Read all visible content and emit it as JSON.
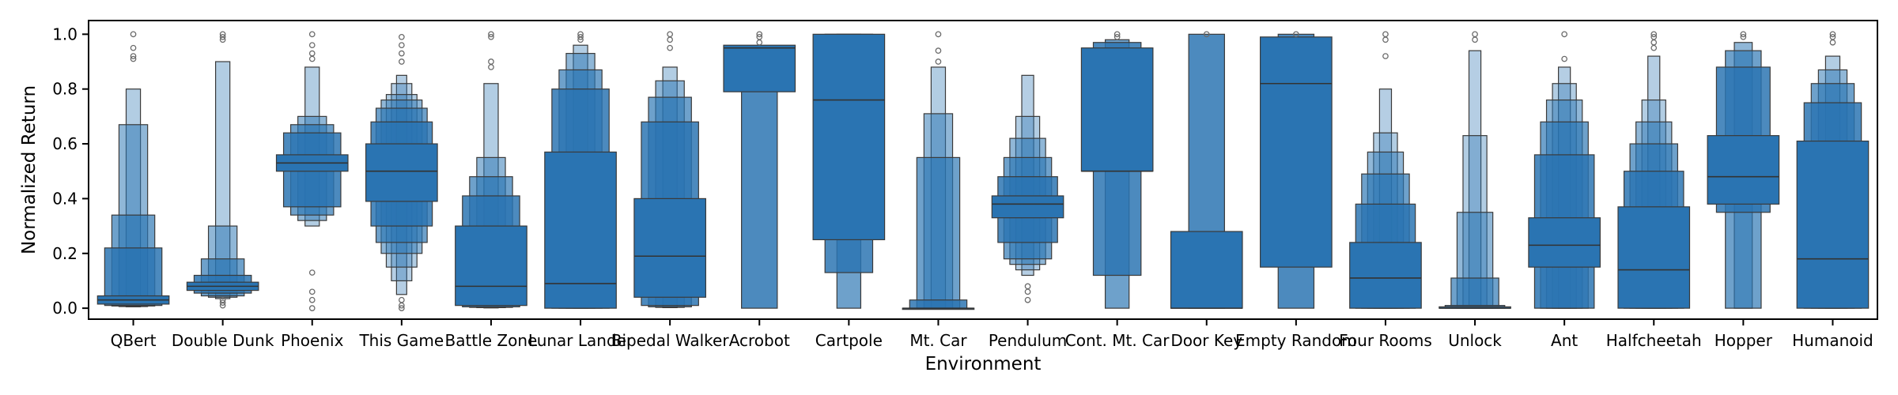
{
  "chart_data": {
    "type": "boxen",
    "title": "",
    "xlabel": "Environment",
    "ylabel": "Normalized Return",
    "ylim": [
      -0.04,
      1.05
    ],
    "yticks": [
      0.0,
      0.2,
      0.4,
      0.6,
      0.8,
      1.0
    ],
    "ytick_labels": [
      "0.0",
      "0.2",
      "0.4",
      "0.6",
      "0.8",
      "1.0"
    ],
    "grid": false,
    "legend": "none",
    "colors": {
      "box": "#2a74b2",
      "edge": "#3a3a3a",
      "outlier": "#6a6a6a"
    },
    "categories": [
      "QBert",
      "Double Dunk",
      "Phoenix",
      "This Game",
      "Battle Zone",
      "Lunar Lander",
      "Bipedal Walker",
      "Acrobot",
      "Cartpole",
      "Mt. Car",
      "Pendulum",
      "Cont. Mt. Car",
      "Door Key",
      "Empty Random",
      "Four Rooms",
      "Unlock",
      "Ant",
      "Halfcheetah",
      "Hopper",
      "Humanoid"
    ],
    "boxes": [
      {
        "median": 0.03,
        "levels": [
          [
            0.015,
            0.045
          ],
          [
            0.01,
            0.22
          ],
          [
            0.008,
            0.34
          ],
          [
            0.006,
            0.67
          ],
          [
            0.005,
            0.8
          ]
        ],
        "outliers": [
          0.92,
          0.91,
          0.95,
          1.0
        ]
      },
      {
        "median": 0.08,
        "levels": [
          [
            0.065,
            0.095
          ],
          [
            0.055,
            0.12
          ],
          [
            0.045,
            0.18
          ],
          [
            0.04,
            0.3
          ],
          [
            0.035,
            0.9
          ]
        ],
        "outliers": [
          0.01,
          0.02,
          0.03,
          0.98,
          0.99,
          1.0
        ]
      },
      {
        "median": 0.53,
        "levels": [
          [
            0.5,
            0.56
          ],
          [
            0.37,
            0.64
          ],
          [
            0.34,
            0.67
          ],
          [
            0.32,
            0.7
          ],
          [
            0.3,
            0.88
          ]
        ],
        "outliers": [
          0.0,
          0.03,
          0.06,
          0.13,
          0.91,
          0.93,
          0.96,
          1.0
        ]
      },
      {
        "median": 0.5,
        "levels": [
          [
            0.39,
            0.6
          ],
          [
            0.3,
            0.68
          ],
          [
            0.24,
            0.73
          ],
          [
            0.2,
            0.76
          ],
          [
            0.15,
            0.78
          ],
          [
            0.1,
            0.82
          ],
          [
            0.05,
            0.85
          ]
        ],
        "outliers": [
          0.0,
          0.01,
          0.03,
          0.9,
          0.93,
          0.96,
          0.99
        ]
      },
      {
        "median": 0.08,
        "levels": [
          [
            0.01,
            0.3
          ],
          [
            0.005,
            0.41
          ],
          [
            0.003,
            0.48
          ],
          [
            0.002,
            0.55
          ],
          [
            0.001,
            0.82
          ]
        ],
        "outliers": [
          0.88,
          0.9,
          0.99,
          1.0
        ]
      },
      {
        "median": 0.09,
        "levels": [
          [
            0.0,
            0.57
          ],
          [
            0.0,
            0.8
          ],
          [
            0.0,
            0.87
          ],
          [
            0.0,
            0.93
          ],
          [
            0.0,
            0.96
          ]
        ],
        "outliers": [
          0.98,
          0.99,
          1.0
        ]
      },
      {
        "median": 0.19,
        "levels": [
          [
            0.04,
            0.4
          ],
          [
            0.01,
            0.68
          ],
          [
            0.005,
            0.77
          ],
          [
            0.003,
            0.83
          ],
          [
            0.002,
            0.88
          ]
        ],
        "outliers": [
          0.95,
          0.98,
          1.0
        ]
      },
      {
        "median": 0.95,
        "levels": [
          [
            0.79,
            0.96
          ],
          [
            0.0,
            0.95
          ]
        ],
        "outliers": [
          0.97,
          0.99,
          1.0
        ]
      },
      {
        "median": 0.76,
        "levels": [
          [
            0.25,
            1.0
          ],
          [
            0.13,
            1.0
          ],
          [
            0.0,
            1.0
          ]
        ],
        "outliers": []
      },
      {
        "median": 0.0,
        "levels": [
          [
            0.0,
            0.0
          ],
          [
            0.0,
            0.03
          ],
          [
            0.0,
            0.55
          ],
          [
            0.0,
            0.71
          ],
          [
            0.0,
            0.88
          ]
        ],
        "outliers": [
          0.9,
          0.94,
          1.0
        ]
      },
      {
        "median": 0.38,
        "levels": [
          [
            0.33,
            0.41
          ],
          [
            0.24,
            0.48
          ],
          [
            0.18,
            0.55
          ],
          [
            0.16,
            0.62
          ],
          [
            0.14,
            0.7
          ],
          [
            0.12,
            0.85
          ]
        ],
        "outliers": [
          0.03,
          0.06,
          0.08
        ]
      },
      {
        "median": 0.5,
        "levels": [
          [
            0.5,
            0.95
          ],
          [
            0.12,
            0.97
          ],
          [
            0.0,
            0.98
          ]
        ],
        "outliers": [
          0.99,
          1.0
        ]
      },
      {
        "median": 0.0,
        "levels": [
          [
            0.0,
            0.28
          ],
          [
            0.0,
            1.0
          ]
        ],
        "outliers": [
          1.0
        ]
      },
      {
        "median": 0.82,
        "levels": [
          [
            0.15,
            0.99
          ],
          [
            0.0,
            1.0
          ]
        ],
        "outliers": [
          1.0
        ]
      },
      {
        "median": 0.11,
        "levels": [
          [
            0.0,
            0.24
          ],
          [
            0.0,
            0.38
          ],
          [
            0.0,
            0.49
          ],
          [
            0.0,
            0.57
          ],
          [
            0.0,
            0.64
          ],
          [
            0.0,
            0.8
          ]
        ],
        "outliers": [
          0.92,
          0.98,
          1.0
        ]
      },
      {
        "median": 0.0,
        "levels": [
          [
            0.0,
            0.005
          ],
          [
            0.0,
            0.01
          ],
          [
            0.0,
            0.11
          ],
          [
            0.0,
            0.35
          ],
          [
            0.0,
            0.63
          ],
          [
            0.0,
            0.94
          ]
        ],
        "outliers": [
          0.98,
          1.0
        ]
      },
      {
        "median": 0.23,
        "levels": [
          [
            0.15,
            0.33
          ],
          [
            0.0,
            0.56
          ],
          [
            0.0,
            0.68
          ],
          [
            0.0,
            0.76
          ],
          [
            0.0,
            0.82
          ],
          [
            0.0,
            0.88
          ]
        ],
        "outliers": [
          0.91,
          1.0
        ]
      },
      {
        "median": 0.14,
        "levels": [
          [
            0.0,
            0.37
          ],
          [
            0.0,
            0.5
          ],
          [
            0.0,
            0.6
          ],
          [
            0.0,
            0.68
          ],
          [
            0.0,
            0.76
          ],
          [
            0.0,
            0.92
          ]
        ],
        "outliers": [
          0.95,
          0.97,
          0.99,
          1.0
        ]
      },
      {
        "median": 0.48,
        "levels": [
          [
            0.38,
            0.63
          ],
          [
            0.35,
            0.88
          ],
          [
            0.0,
            0.94
          ],
          [
            0.0,
            0.97
          ]
        ],
        "outliers": [
          0.99,
          1.0
        ]
      },
      {
        "median": 0.18,
        "levels": [
          [
            0.0,
            0.61
          ],
          [
            0.0,
            0.75
          ],
          [
            0.0,
            0.82
          ],
          [
            0.0,
            0.87
          ],
          [
            0.0,
            0.92
          ]
        ],
        "outliers": [
          0.97,
          0.99,
          1.0
        ]
      }
    ]
  }
}
